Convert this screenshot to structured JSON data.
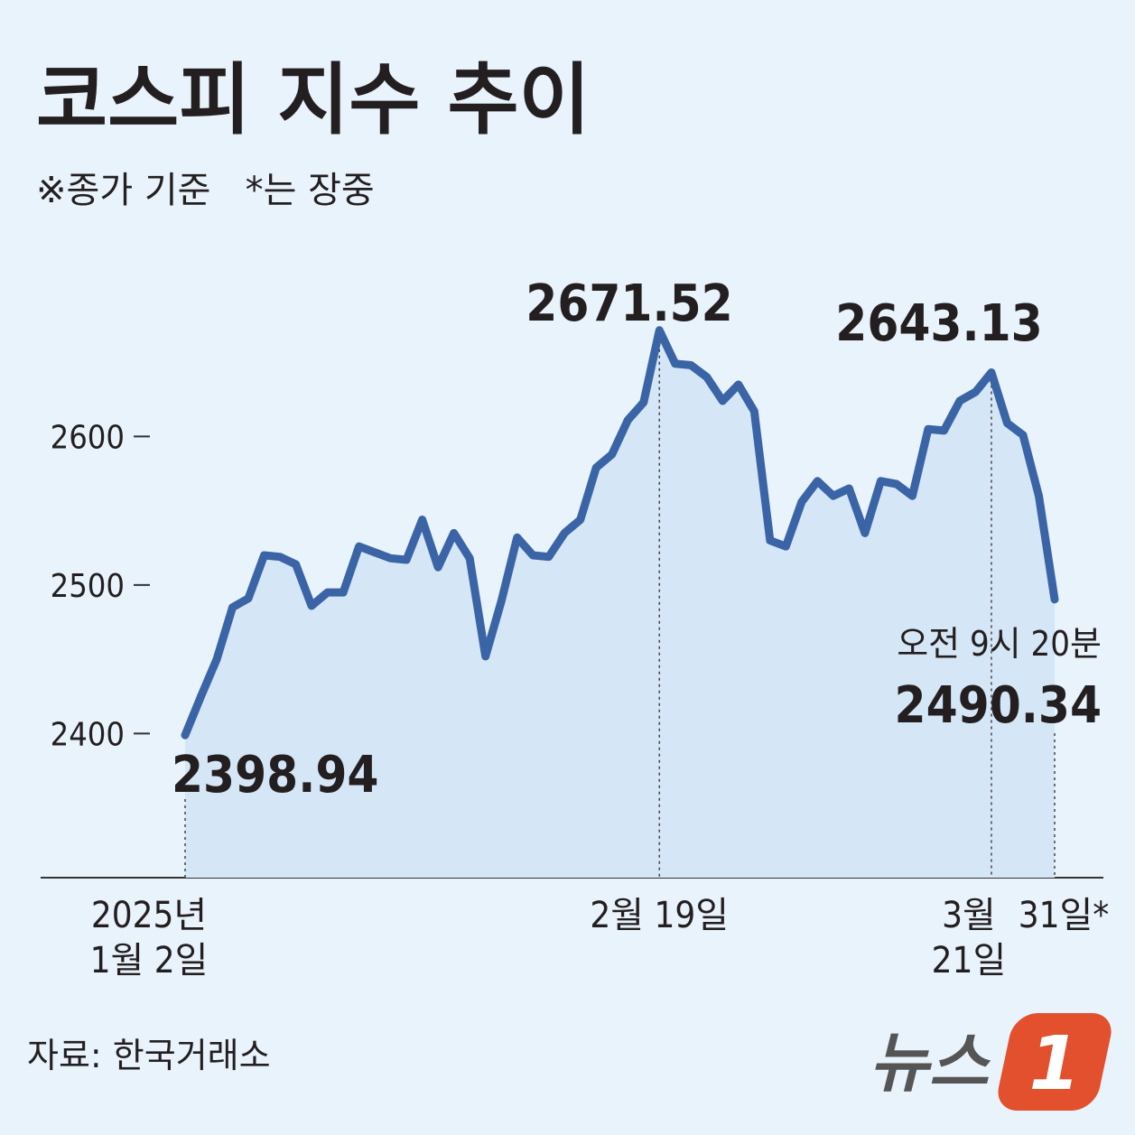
{
  "chart_data": {
    "type": "line",
    "title": "코스피 지수 추이",
    "subtitle": "※종가 기준   *는 장중",
    "categories": [
      "2025년\n1월 2일",
      null,
      null,
      null,
      null,
      null,
      null,
      null,
      null,
      null,
      null,
      null,
      null,
      null,
      null,
      null,
      null,
      null,
      null,
      null,
      null,
      null,
      null,
      null,
      null,
      null,
      null,
      null,
      null,
      null,
      "2월 19일",
      null,
      null,
      null,
      null,
      null,
      null,
      null,
      null,
      null,
      null,
      null,
      null,
      null,
      null,
      null,
      null,
      null,
      null,
      null,
      null,
      "3월\n21일",
      null,
      null,
      null,
      "31일*"
    ],
    "series": [
      {
        "name": "코스피",
        "color": "#3a64a6",
        "area_color": "#d5e6f6",
        "values": [
          2398.94,
          2425,
          2450,
          2485,
          2491,
          2520,
          2519,
          2514,
          2486,
          2495,
          2495,
          2526,
          2522,
          2518,
          2517,
          2544,
          2512,
          2535,
          2518,
          2452,
          2489,
          2532,
          2520,
          2519,
          2535,
          2544,
          2579,
          2588,
          2611,
          2623,
          2671.52,
          2649,
          2648,
          2640,
          2624,
          2635,
          2617,
          2530,
          2526,
          2556,
          2570,
          2560,
          2565,
          2535,
          2570,
          2568,
          2560,
          2605,
          2604,
          2624,
          2630,
          2643.13,
          2609,
          2601,
          2560,
          2490.34
        ]
      }
    ],
    "labeled_points": [
      0,
      30,
      51,
      55
    ],
    "annotation": "오전 9시 20분",
    "ylim": [
      2303,
      2700
    ],
    "yticks": [
      2400,
      2500,
      2600
    ],
    "source": "자료: 한국거래소",
    "logo": {
      "text": "뉴스",
      "badge": "1"
    }
  }
}
